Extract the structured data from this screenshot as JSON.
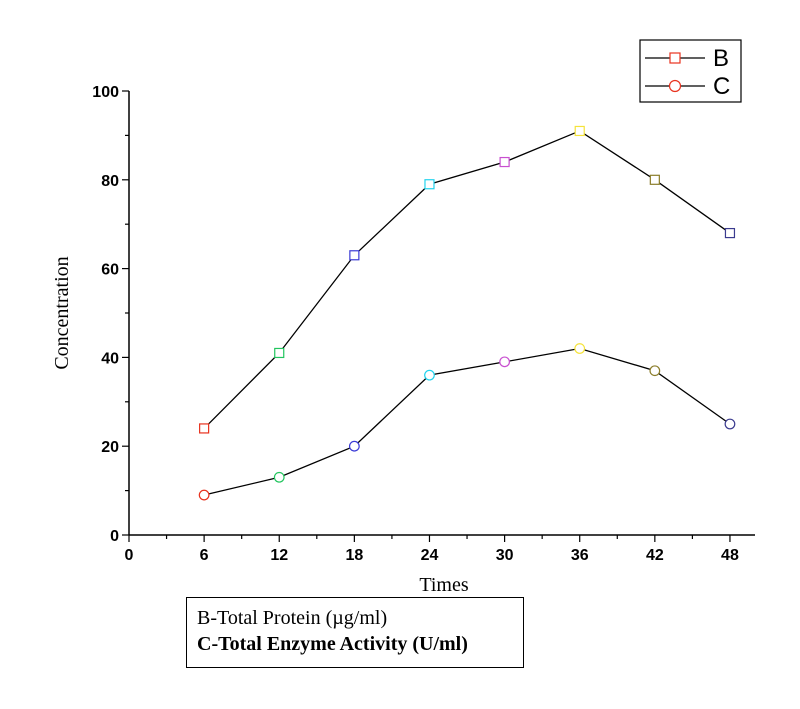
{
  "chart_data": {
    "type": "line",
    "xlabel": "Times",
    "ylabel": "Concentration",
    "x": [
      6,
      12,
      18,
      24,
      30,
      36,
      42,
      48
    ],
    "xlim": [
      0,
      50
    ],
    "ylim": [
      0,
      100
    ],
    "xticks": [
      0,
      6,
      12,
      18,
      24,
      30,
      36,
      42,
      48
    ],
    "yticks": [
      0,
      20,
      40,
      60,
      80,
      100
    ],
    "legend_position": "top-right",
    "series": [
      {
        "name": "B",
        "marker": "square",
        "values": [
          24,
          41,
          63,
          79,
          84,
          91,
          80,
          68
        ]
      },
      {
        "name": "C",
        "marker": "circle",
        "values": [
          9,
          13,
          20,
          36,
          39,
          42,
          37,
          25
        ]
      }
    ],
    "marker_colors": [
      "#e8321e",
      "#22c55e",
      "#3b3bd6",
      "#22d3ee",
      "#c84fd0",
      "#f5e33a",
      "#8b7d2a",
      "#3b3b8f"
    ],
    "line_color": "#000000"
  },
  "note": {
    "line1": "B-Total Protein (µg/ml)",
    "line2": "C-Total Enzyme Activity (U/ml)"
  }
}
